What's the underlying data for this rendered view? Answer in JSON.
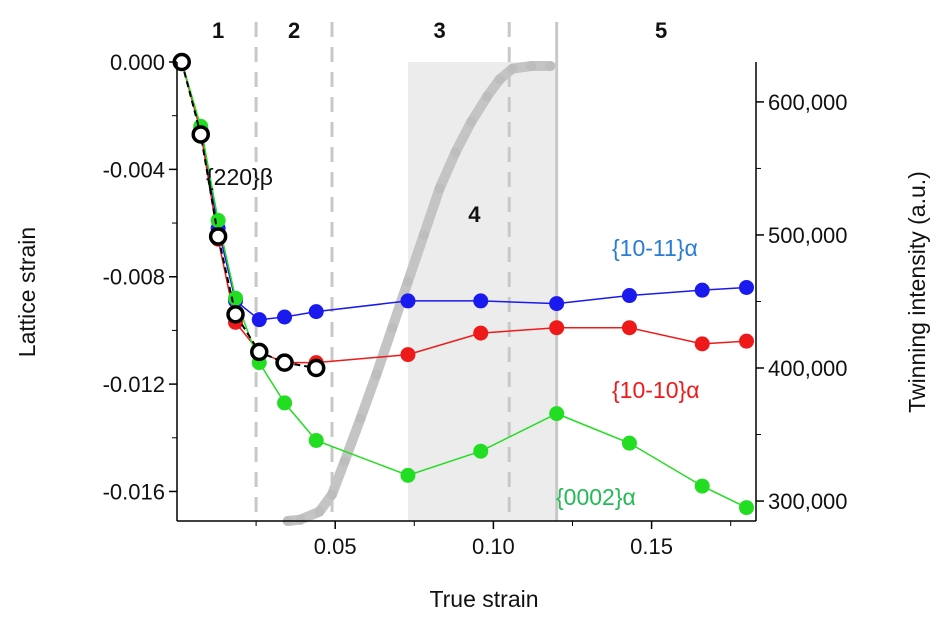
{
  "chart_data": {
    "type": "line",
    "xlabel": "True strain",
    "ylabel_left": "Lattice strain",
    "ylabel_right": "Twinning intensity (a.u.)",
    "xlim": [
      0.0,
      0.183
    ],
    "ylim_left": [
      -0.0171,
      0.0
    ],
    "ylim_right": [
      285000,
      630000
    ],
    "x_ticks": [
      {
        "value": 0.05,
        "label": "0.05"
      },
      {
        "value": 0.1,
        "label": "0.10"
      },
      {
        "value": 0.15,
        "label": "0.15"
      }
    ],
    "y_left_ticks": [
      {
        "value": 0.0,
        "label": "0.000"
      },
      {
        "value": -0.004,
        "label": "-0.004"
      },
      {
        "value": -0.008,
        "label": "-0.008"
      },
      {
        "value": -0.012,
        "label": "-0.012"
      },
      {
        "value": -0.016,
        "label": "-0.016"
      }
    ],
    "y_right_ticks": [
      {
        "value": 300000,
        "label": "300,000"
      },
      {
        "value": 400000,
        "label": "400,000"
      },
      {
        "value": 500000,
        "label": "500,000"
      },
      {
        "value": 600000,
        "label": "600,000"
      }
    ],
    "regions": [
      {
        "label": "1",
        "x": 0.013
      },
      {
        "label": "2",
        "x": 0.037
      },
      {
        "label": "3",
        "x": 0.083
      },
      {
        "label": "4",
        "x": 0.094,
        "inside": true
      },
      {
        "label": "5",
        "x": 0.153
      }
    ],
    "dashed_lines_x": [
      0.025,
      0.049,
      0.105
    ],
    "solid_line_x": 0.12,
    "shaded_band": [
      0.073,
      0.12
    ],
    "series": [
      {
        "name": "{10-11}α",
        "color": "#1a1aee",
        "label_color": "#2a7bd4",
        "points": [
          [
            0.0015,
            0.0
          ],
          [
            0.0075,
            -0.0025
          ],
          [
            0.013,
            -0.0062
          ],
          [
            0.0185,
            -0.0089
          ],
          [
            0.026,
            -0.0096
          ],
          [
            0.034,
            -0.0095
          ],
          [
            0.044,
            -0.0093
          ],
          [
            0.073,
            -0.0089
          ],
          [
            0.096,
            -0.0089
          ],
          [
            0.12,
            -0.009
          ],
          [
            0.143,
            -0.0087
          ],
          [
            0.166,
            -0.0085
          ],
          [
            0.18,
            -0.0084
          ]
        ]
      },
      {
        "name": "{10-10}α",
        "color": "#ee1a1a",
        "label_color": "#ee1a1a",
        "points": [
          [
            0.0015,
            0.0
          ],
          [
            0.0075,
            -0.0026
          ],
          [
            0.013,
            -0.0066
          ],
          [
            0.0185,
            -0.0097
          ],
          [
            0.026,
            -0.0108
          ],
          [
            0.034,
            -0.0112
          ],
          [
            0.044,
            -0.0112
          ],
          [
            0.073,
            -0.0109
          ],
          [
            0.096,
            -0.0101
          ],
          [
            0.12,
            -0.0099
          ],
          [
            0.143,
            -0.0099
          ],
          [
            0.166,
            -0.0105
          ],
          [
            0.18,
            -0.0104
          ]
        ]
      },
      {
        "name": "{0002}α",
        "color": "#22dd22",
        "label_color": "#22bb55",
        "points": [
          [
            0.0015,
            0.0
          ],
          [
            0.0075,
            -0.0024
          ],
          [
            0.013,
            -0.0059
          ],
          [
            0.0185,
            -0.0088
          ],
          [
            0.026,
            -0.0112
          ],
          [
            0.034,
            -0.0127
          ],
          [
            0.044,
            -0.0141
          ],
          [
            0.073,
            -0.0154
          ],
          [
            0.096,
            -0.0145
          ],
          [
            0.12,
            -0.0131
          ],
          [
            0.143,
            -0.0142
          ],
          [
            0.166,
            -0.0158
          ],
          [
            0.18,
            -0.0166
          ]
        ]
      },
      {
        "name": "{220}β",
        "color": "#000000",
        "label_color": "#111111",
        "points": [
          [
            0.0015,
            0.0
          ],
          [
            0.0075,
            -0.0027
          ],
          [
            0.013,
            -0.0065
          ],
          [
            0.0185,
            -0.0094
          ],
          [
            0.026,
            -0.0108
          ],
          [
            0.034,
            -0.0112
          ],
          [
            0.044,
            -0.0114
          ]
        ]
      }
    ],
    "twinning": {
      "color": "#c4c4c4",
      "points": [
        [
          0.035,
          285000
        ],
        [
          0.039,
          286000
        ],
        [
          0.045,
          292000
        ],
        [
          0.049,
          305000
        ],
        [
          0.053,
          330000
        ],
        [
          0.058,
          362000
        ],
        [
          0.063,
          395000
        ],
        [
          0.068,
          430000
        ],
        [
          0.073,
          465000
        ],
        [
          0.078,
          500000
        ],
        [
          0.083,
          535000
        ],
        [
          0.088,
          562000
        ],
        [
          0.093,
          585000
        ],
        [
          0.098,
          604000
        ],
        [
          0.102,
          617000
        ],
        [
          0.106,
          625000
        ],
        [
          0.112,
          627000
        ],
        [
          0.118,
          627000
        ]
      ]
    }
  }
}
